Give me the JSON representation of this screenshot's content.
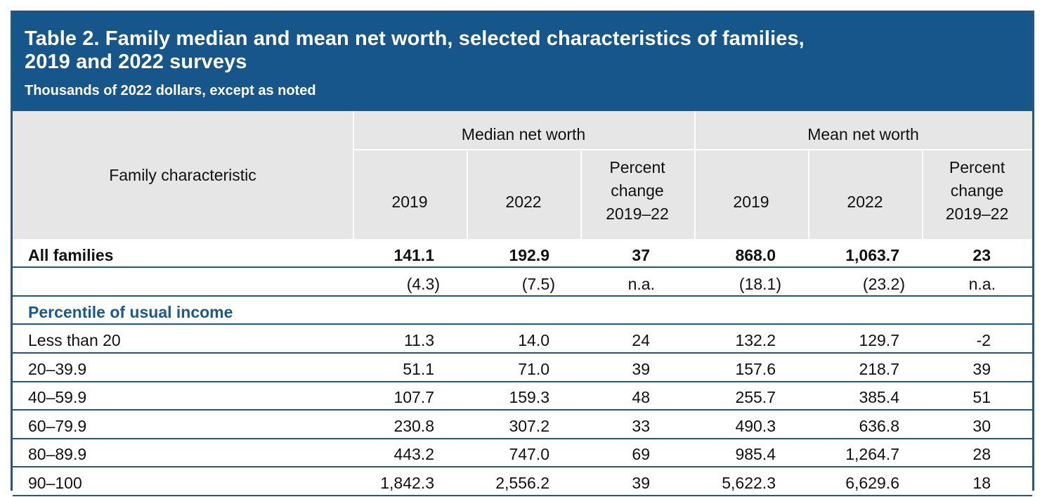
{
  "title_line1": "Table 2. Family median and mean net worth, selected characteristics of families,",
  "title_line2": "2019 and 2022 surveys",
  "subtitle": "Thousands of 2022 dollars, except as noted",
  "header": {
    "family_characteristic": "Family characteristic",
    "median_group": "Median net worth",
    "mean_group": "Mean net worth",
    "col_2019": "2019",
    "col_2022": "2022",
    "pct_line1": "Percent",
    "pct_line2": "change",
    "pct_line3": "2019–22"
  },
  "all_families": {
    "label": "All families",
    "values": [
      "141.1",
      "192.9",
      "37",
      "868.0",
      "1,063.7",
      "23"
    ]
  },
  "standard_errors": {
    "values": [
      "(4.3)",
      "(7.5)",
      "n.a.",
      "(18.1)",
      "(23.2)",
      "n.a."
    ]
  },
  "section_label": "Percentile of usual income",
  "rows": [
    {
      "label": "Less than 20",
      "values": [
        "11.3",
        "14.0",
        "24",
        "132.2",
        "129.7",
        "-2"
      ]
    },
    {
      "label": "20–39.9",
      "values": [
        "51.1",
        "71.0",
        "39",
        "157.6",
        "218.7",
        "39"
      ]
    },
    {
      "label": "40–59.9",
      "values": [
        "107.7",
        "159.3",
        "48",
        "255.7",
        "385.4",
        "51"
      ]
    },
    {
      "label": "60–79.9",
      "values": [
        "230.8",
        "307.2",
        "33",
        "490.3",
        "636.8",
        "30"
      ]
    },
    {
      "label": "80–89.9",
      "values": [
        "443.2",
        "747.0",
        "69",
        "985.4",
        "1,264.7",
        "28"
      ]
    },
    {
      "label": "90–100",
      "values": [
        "1,842.3",
        "2,556.2",
        "39",
        "5,622.3",
        "6,629.6",
        "18"
      ]
    }
  ]
}
